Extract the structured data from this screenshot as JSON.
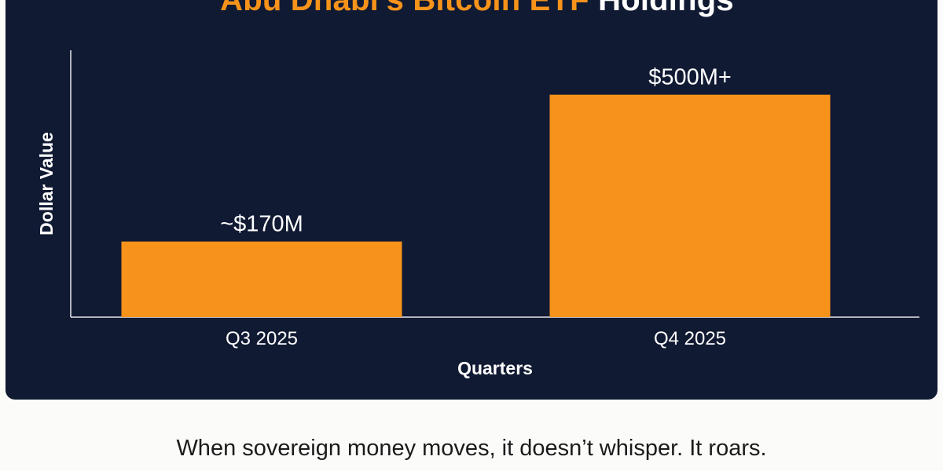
{
  "chart_data": {
    "type": "bar",
    "title": "Abu Dhabi's Bitcoin ETF Holdings",
    "title_parts": {
      "highlight": "Abu Dhabi's Bitcoin ETF",
      "rest": "Holdings"
    },
    "categories": [
      "Q3 2025",
      "Q4 2025"
    ],
    "values": [
      170,
      500
    ],
    "data_labels": [
      "~$170M",
      "$500M+"
    ],
    "xlabel": "Quarters",
    "ylabel": "Dollar Value",
    "ylim": [
      0,
      600
    ],
    "grid": false,
    "bar_color": "#f7931a",
    "background_color": "#111a33",
    "title_highlight_color": "#f7931a"
  },
  "caption": "When sovereign money moves, it doesn’t whisper. It roars."
}
